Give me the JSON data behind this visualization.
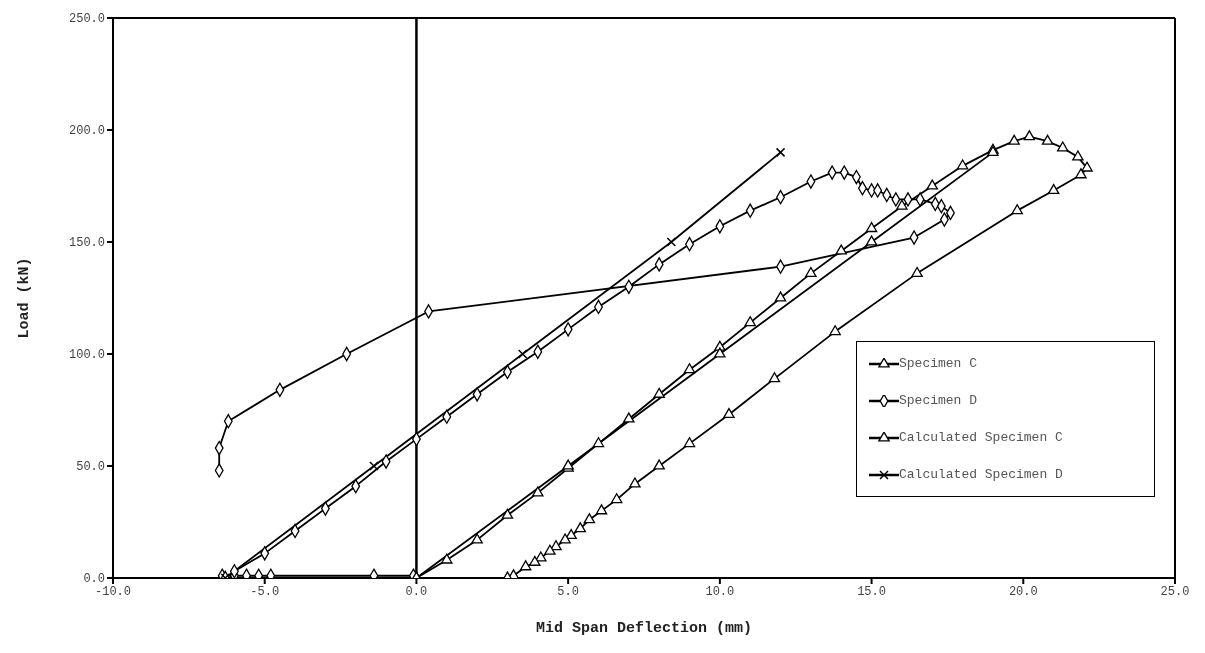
{
  "chart_data": {
    "type": "line",
    "xlabel": "Mid Span Deflection (mm)",
    "ylabel": "Load (kN)",
    "xlim": [
      -10,
      25
    ],
    "xticks": [
      {
        "value": -10,
        "label": "-10.0"
      },
      {
        "value": -5,
        "label": "-5.0"
      },
      {
        "value": 0,
        "label": "0.0"
      },
      {
        "value": 5,
        "label": "5.0"
      },
      {
        "value": 10,
        "label": "10.0"
      },
      {
        "value": 15,
        "label": "15.0"
      },
      {
        "value": 20,
        "label": "20.0"
      },
      {
        "value": 25,
        "label": "25.0"
      }
    ],
    "ylim": [
      0,
      250
    ],
    "yticks": [
      {
        "value": 0,
        "label": "0.0"
      },
      {
        "value": 50,
        "label": "50.0"
      },
      {
        "value": 100,
        "label": "100.0"
      },
      {
        "value": 150,
        "label": "150.0"
      },
      {
        "value": 200,
        "label": "200.0"
      },
      {
        "value": 250,
        "label": "250.0"
      }
    ],
    "grid": false,
    "legend": "right",
    "line_style": "solid",
    "ref_lines": [
      {
        "axis": "x",
        "value": 0,
        "color": "#000000"
      }
    ],
    "series": [
      {
        "name": "Specimen C",
        "color": "#000000",
        "marker": "triangle",
        "x": [
          0,
          1,
          2,
          3,
          4,
          5,
          6,
          7,
          8,
          9,
          10,
          11,
          12,
          13,
          14,
          15,
          16,
          17,
          18,
          19,
          19.7,
          20.2,
          20.8,
          21.3,
          21.8,
          22.1,
          21.9,
          21.0,
          19.8,
          16.5,
          13.8,
          11.8,
          10.3,
          9.0,
          8.0,
          7.2,
          6.6,
          6.1,
          5.7,
          5.4,
          5.1,
          4.9,
          4.6,
          4.4,
          4.1,
          3.9,
          3.6,
          3.2,
          3.0
        ],
        "values": [
          0,
          8,
          17,
          28,
          38,
          49,
          60,
          71,
          82,
          93,
          103,
          114,
          125,
          136,
          146,
          156,
          166,
          175,
          184,
          191,
          195,
          197,
          195,
          192,
          188,
          183,
          180,
          173,
          164,
          136,
          110,
          89,
          73,
          60,
          50,
          42,
          35,
          30,
          26,
          22,
          19,
          17,
          14,
          12,
          9,
          7,
          5,
          1,
          0
        ]
      },
      {
        "name": "Specimen D",
        "color": "#000000",
        "marker": "diamond",
        "x": [
          -0.1,
          -1.4,
          -4.8,
          -5.2,
          -5.6,
          -6.0,
          -6.4,
          -6.3,
          -6.0,
          -5.0,
          -4.0,
          -3.0,
          -2.0,
          -1.0,
          0,
          1,
          2,
          3,
          4,
          5,
          6,
          7,
          8,
          9,
          10,
          11,
          12,
          13,
          13.7,
          14.1,
          14.5,
          14.7,
          15.0,
          15.2,
          15.5,
          15.8,
          16.2,
          16.6,
          17.1,
          17.3,
          17.6,
          17.4,
          16.4,
          12.0,
          0.4,
          -2.3,
          -4.5,
          -6.2,
          -6.5,
          -6.5
        ],
        "values": [
          1,
          1,
          1,
          1,
          1,
          1,
          1,
          0,
          3,
          11,
          21,
          31,
          41,
          52,
          62,
          72,
          82,
          92,
          101,
          111,
          121,
          130,
          140,
          149,
          157,
          164,
          170,
          177,
          181,
          181,
          179,
          174,
          173,
          173,
          171,
          169,
          169,
          169,
          167,
          166,
          163,
          160,
          152,
          139,
          119,
          100,
          84,
          70,
          58,
          48
        ]
      },
      {
        "name": "Calculated Specimen C",
        "color": "#000000",
        "marker": "triangle",
        "x": [
          0,
          5,
          10,
          15,
          19
        ],
        "values": [
          0,
          50,
          100,
          150,
          190
        ]
      },
      {
        "name": "Calculated Specimen D",
        "color": "#000000",
        "marker": "cross",
        "x": [
          -6.3,
          -1.4,
          3.5,
          8.4,
          12.0
        ],
        "values": [
          0,
          50,
          100,
          150,
          190
        ]
      }
    ]
  }
}
